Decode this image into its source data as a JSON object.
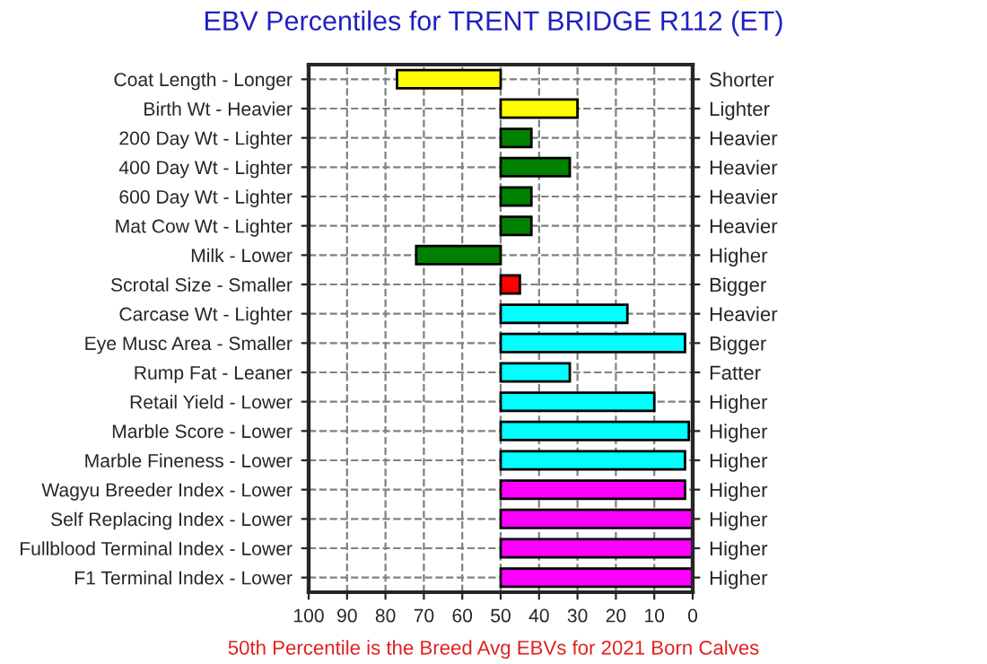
{
  "chart_data": {
    "type": "bar",
    "orientation": "horizontal",
    "title": "EBV Percentiles for TRENT BRIDGE R112 (ET)",
    "categories": [
      "Coat Length - Longer",
      "Birth Wt - Heavier",
      "200 Day Wt - Lighter",
      "400 Day Wt - Lighter",
      "600 Day Wt - Lighter",
      "Mat Cow Wt - Lighter",
      "Milk - Lower",
      "Scrotal Size - Smaller",
      "Carcase Wt - Lighter",
      "Eye Musc Area - Smaller",
      "Rump Fat - Leaner",
      "Retail Yield - Lower",
      "Marble Score - Lower",
      "Marble Fineness - Lower",
      "Wagyu Breeder Index - Lower",
      "Self Replacing Index - Lower",
      "Fullblood Terminal Index - Lower",
      "F1 Terminal Index - Lower"
    ],
    "y2_categories": [
      "Shorter",
      "Lighter",
      "Heavier",
      "Heavier",
      "Heavier",
      "Heavier",
      "Higher",
      "Bigger",
      "Heavier",
      "Bigger",
      "Fatter",
      "Higher",
      "Higher",
      "Higher",
      "Higher",
      "Higher",
      "Higher",
      "Higher"
    ],
    "base": [
      50,
      50,
      50,
      50,
      50,
      50,
      50,
      50,
      50,
      50,
      50,
      50,
      50,
      50,
      50,
      50,
      50,
      50
    ],
    "values": [
      27,
      -20,
      -8,
      -18,
      -8,
      -8,
      22,
      -5,
      -33,
      -48,
      -18,
      -40,
      -49,
      -48,
      -48,
      -50,
      -50,
      -50
    ],
    "colors": [
      "#ffff00",
      "#ffff00",
      "#008000",
      "#008000",
      "#008000",
      "#008000",
      "#008000",
      "#ff0000",
      "#00ffff",
      "#00ffff",
      "#00ffff",
      "#00ffff",
      "#00ffff",
      "#00ffff",
      "#ff00ff",
      "#ff00ff",
      "#ff00ff",
      "#ff00ff"
    ],
    "xlim": [
      100,
      0
    ],
    "xticks": [
      100,
      90,
      80,
      70,
      60,
      50,
      40,
      30,
      20,
      10,
      0
    ],
    "grid": true,
    "annotations": [
      "50th Percentile is the Breed Avg EBVs for 2021 Born Calves"
    ]
  }
}
